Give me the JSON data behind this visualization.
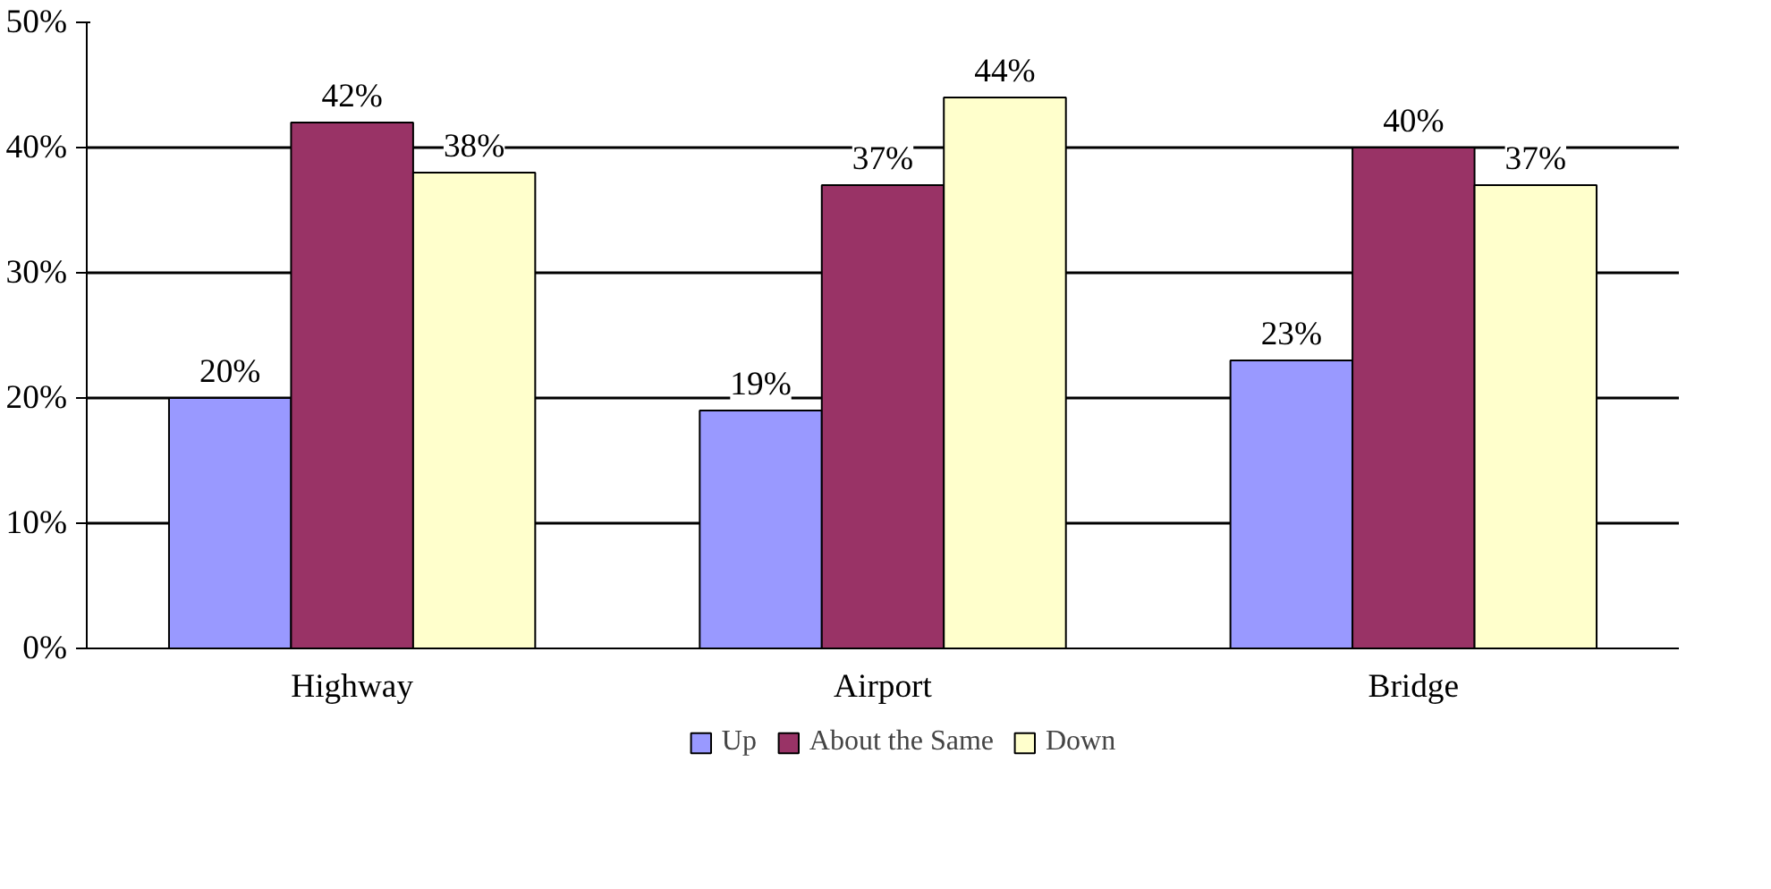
{
  "chart_data": {
    "type": "bar",
    "categories": [
      "Highway",
      "Airport",
      "Bridge"
    ],
    "series": [
      {
        "name": "Up",
        "color": "#9999ff",
        "values": [
          20,
          19,
          23
        ],
        "value_labels": [
          "20%",
          "19%",
          "23%"
        ]
      },
      {
        "name": "About the Same",
        "color": "#993366",
        "values": [
          42,
          37,
          40
        ],
        "value_labels": [
          "42%",
          "37%",
          "40%"
        ]
      },
      {
        "name": "Down",
        "color": "#ffffcc",
        "values": [
          38,
          44,
          37
        ],
        "value_labels": [
          "38%",
          "44%",
          "37%"
        ]
      }
    ],
    "ylim": [
      0,
      50
    ],
    "yticks": [
      {
        "value": 0,
        "label": "0%"
      },
      {
        "value": 10,
        "label": "10%"
      },
      {
        "value": 20,
        "label": "20%"
      },
      {
        "value": 30,
        "label": "30%"
      },
      {
        "value": 40,
        "label": "40%"
      },
      {
        "value": 50,
        "label": "50%"
      }
    ],
    "grid": "y",
    "legend": "bottom"
  }
}
